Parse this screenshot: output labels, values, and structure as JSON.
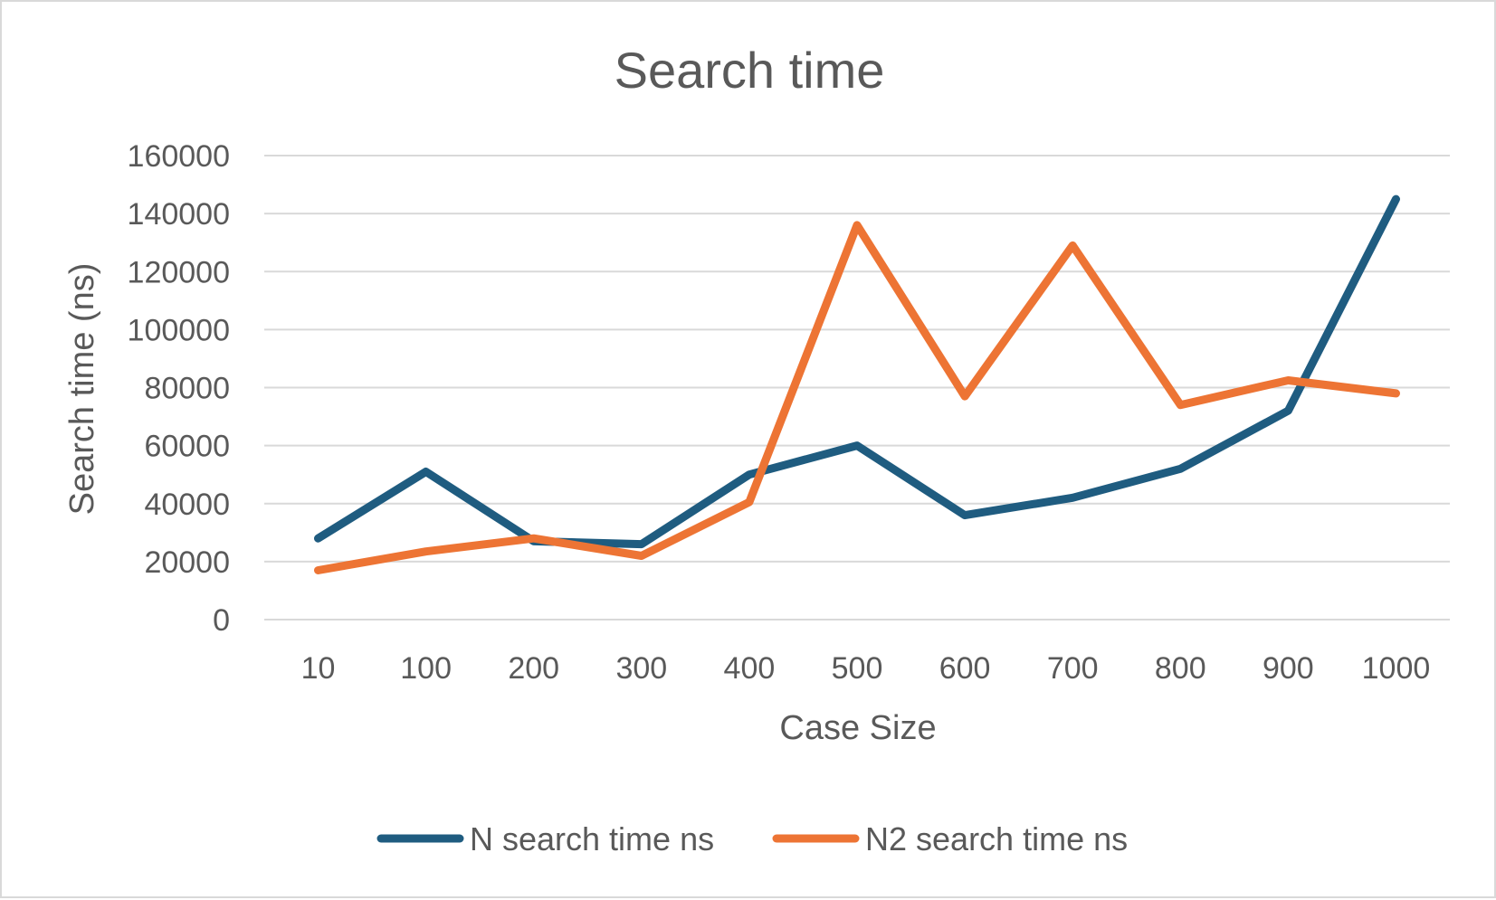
{
  "chart_data": {
    "type": "line",
    "title": "Search time",
    "xlabel": "Case Size",
    "ylabel": "Search time (ns)",
    "categories": [
      "10",
      "100",
      "200",
      "300",
      "400",
      "500",
      "600",
      "700",
      "800",
      "900",
      "1000"
    ],
    "ylim": [
      0,
      160000
    ],
    "yticks": [
      "0",
      "20000",
      "40000",
      "60000",
      "80000",
      "100000",
      "120000",
      "140000",
      "160000"
    ],
    "grid": true,
    "legend_position": "bottom",
    "series": [
      {
        "name": "N search time ns",
        "color": "#1f5c80",
        "values": [
          28000,
          51000,
          27000,
          26000,
          50000,
          60000,
          36000,
          42000,
          52000,
          72000,
          145000
        ]
      },
      {
        "name": "N2 search time ns",
        "color": "#ed7434",
        "values": [
          17000,
          23500,
          28000,
          22000,
          40500,
          136000,
          77000,
          129000,
          74000,
          82500,
          78000
        ]
      }
    ]
  }
}
